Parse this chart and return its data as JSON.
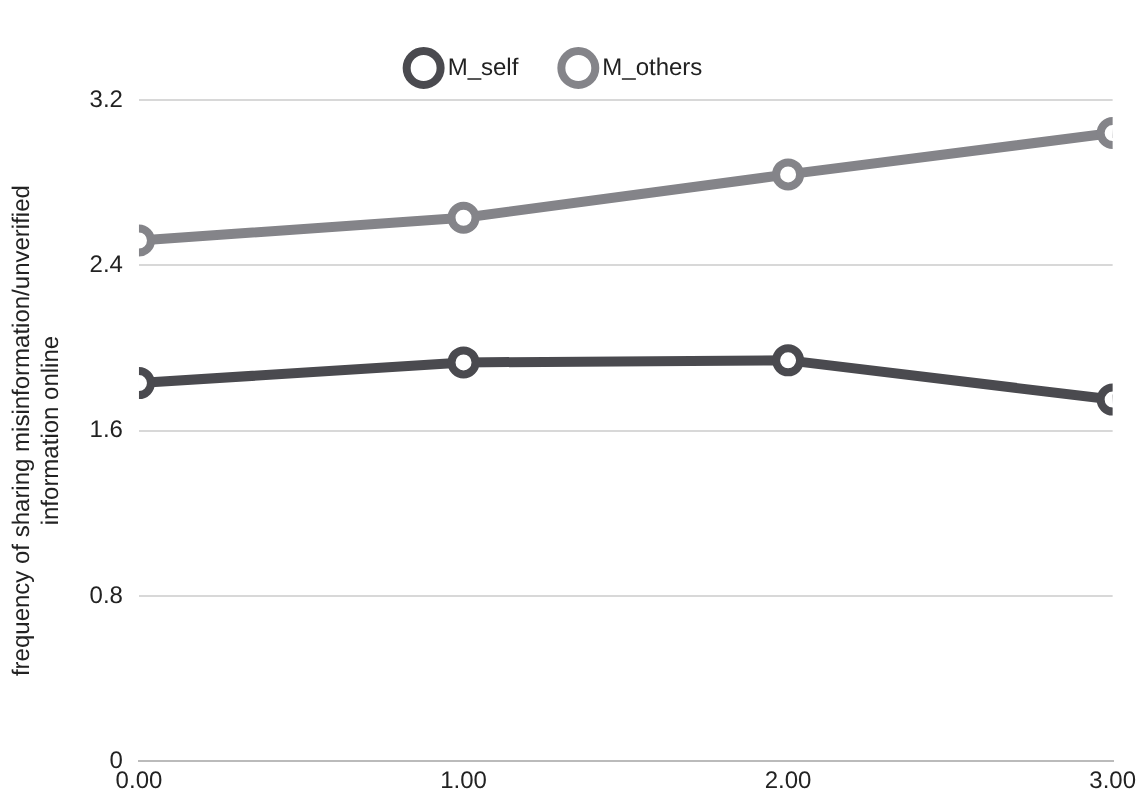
{
  "chart_data": {
    "type": "line",
    "ylabel": "frequency of sharing misinformation/unverified information online",
    "x": [
      0,
      1,
      2,
      3
    ],
    "series": [
      {
        "name": "M_self",
        "color": "#4a4a4f",
        "values": [
          1.83,
          1.93,
          1.94,
          1.75
        ]
      },
      {
        "name": "M_others",
        "color": "#848489",
        "values": [
          2.52,
          2.63,
          2.84,
          3.04
        ]
      }
    ],
    "xlim": [
      0,
      3
    ],
    "xticks": [
      {
        "value": 0,
        "label": "0.00"
      },
      {
        "value": 1,
        "label": "1.00"
      },
      {
        "value": 2,
        "label": "2.00"
      },
      {
        "value": 3,
        "label": "3.00"
      }
    ],
    "ylim": [
      0,
      3.2
    ],
    "yticks": [
      0,
      0.8,
      1.6,
      2.4,
      3.2
    ],
    "grid": "y",
    "legend": "top",
    "marker": "circle",
    "line_style": "solid"
  }
}
